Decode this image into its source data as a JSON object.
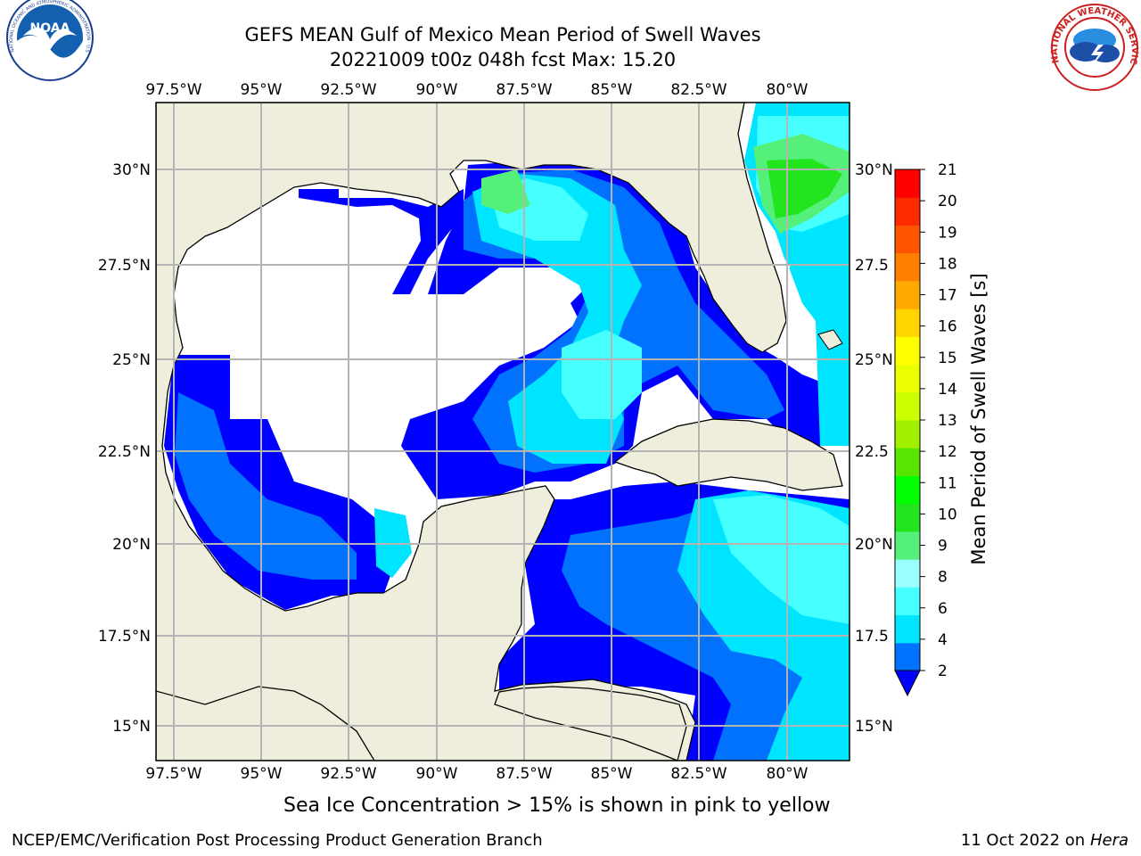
{
  "title": {
    "line1": "GEFS MEAN Gulf of Mexico Mean Period of Swell Waves",
    "line2": "20221009 t00z 048h fcst   Max: 15.20"
  },
  "map": {
    "lon_labels": [
      "97.5°W",
      "95°W",
      "92.5°W",
      "90°W",
      "87.5°W",
      "85°W",
      "82.5°W",
      "80°W"
    ],
    "lat_labels_left": [
      "30°N",
      "27.5°N",
      "25°N",
      "22.5°N",
      "20°N",
      "17.5°N",
      "15°N"
    ],
    "lat_labels_right": [
      "30°N",
      "27.5",
      "25°N",
      "22.5",
      "20°N",
      "17.5",
      "15°N"
    ],
    "land_color": "#efeedc",
    "grid_color": "#b4b4b4"
  },
  "colorbar": {
    "label": "Mean Period of Swell Waves [s]",
    "ticks": [
      "2",
      "4",
      "6",
      "8",
      "9",
      "10",
      "11",
      "12",
      "13",
      "14",
      "15",
      "16",
      "17",
      "18",
      "19",
      "20",
      "21"
    ],
    "colors": [
      "#0072fe",
      "#00e5ff",
      "#46ffff",
      "#9bffff",
      "#55f07a",
      "#22e51e",
      "#00ff00",
      "#58e600",
      "#a0f000",
      "#ccff00",
      "#ecff00",
      "#ffff00",
      "#ffd500",
      "#ffaa00",
      "#ff8000",
      "#ff5500",
      "#ff2b00",
      "#ff0000"
    ],
    "under_color": "#0000ff"
  },
  "logos": {
    "noaa_text": "NOAA",
    "noaa_ring": "NATIONAL OCEANIC AND ATMOSPHERIC ADMINISTRATION · U.S. DEPARTMENT OF COMMERCE",
    "nws_ring": "NATIONAL WEATHER SERVICE"
  },
  "footer": {
    "note": "Sea Ice Concentration > 15% is shown in pink to yellow",
    "credit": "NCEP/EMC/Verification Post Processing Product Generation Branch",
    "date_prefix": "11 Oct 2022 on ",
    "date_host": "Hera"
  }
}
